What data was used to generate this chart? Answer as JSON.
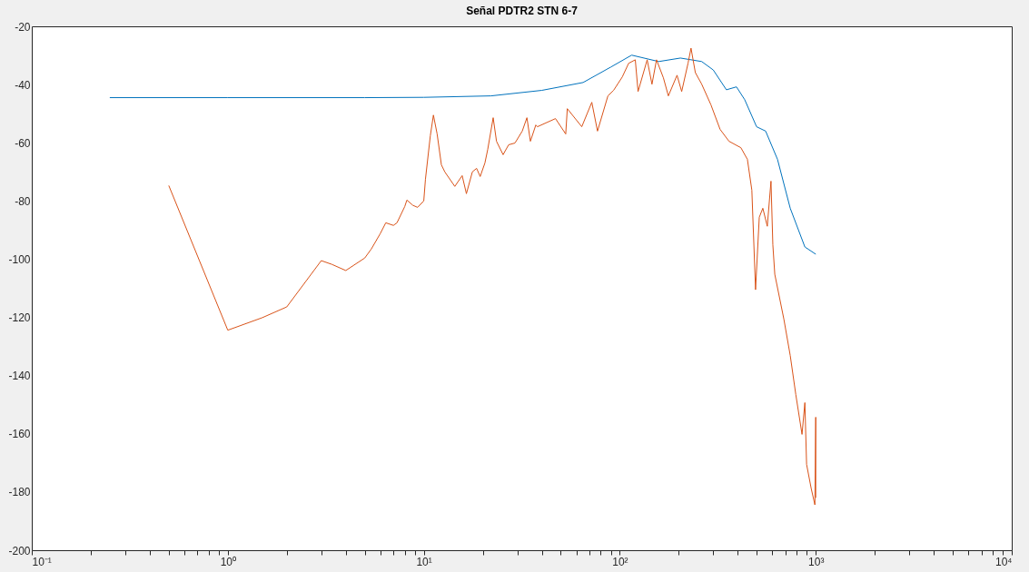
{
  "chart_data": {
    "type": "line",
    "title": "Señal PDTR2 STN 6-7",
    "log": "x",
    "grid": false,
    "line_style": "solid",
    "marker": "none",
    "xlim": [
      0.1,
      10000
    ],
    "ylim": [
      -200,
      -20
    ],
    "xticks": [
      {
        "value": 0.1,
        "label": "10⁻¹"
      },
      {
        "value": 0.2,
        "label": null
      },
      {
        "value": 0.3,
        "label": null
      },
      {
        "value": 0.4,
        "label": null
      },
      {
        "value": 0.5,
        "label": null
      },
      {
        "value": 0.6,
        "label": null
      },
      {
        "value": 0.7,
        "label": null
      },
      {
        "value": 0.8,
        "label": null
      },
      {
        "value": 0.9,
        "label": null
      },
      {
        "value": 1,
        "label": "10⁰"
      },
      {
        "value": 2,
        "label": null
      },
      {
        "value": 3,
        "label": null
      },
      {
        "value": 4,
        "label": null
      },
      {
        "value": 5,
        "label": null
      },
      {
        "value": 6,
        "label": null
      },
      {
        "value": 7,
        "label": null
      },
      {
        "value": 8,
        "label": null
      },
      {
        "value": 9,
        "label": null
      },
      {
        "value": 10,
        "label": "10¹"
      },
      {
        "value": 20,
        "label": null
      },
      {
        "value": 30,
        "label": null
      },
      {
        "value": 40,
        "label": null
      },
      {
        "value": 50,
        "label": null
      },
      {
        "value": 60,
        "label": null
      },
      {
        "value": 70,
        "label": null
      },
      {
        "value": 80,
        "label": null
      },
      {
        "value": 90,
        "label": null
      },
      {
        "value": 100,
        "label": "10²"
      },
      {
        "value": 200,
        "label": null
      },
      {
        "value": 300,
        "label": null
      },
      {
        "value": 400,
        "label": null
      },
      {
        "value": 500,
        "label": null
      },
      {
        "value": 600,
        "label": null
      },
      {
        "value": 700,
        "label": null
      },
      {
        "value": 800,
        "label": null
      },
      {
        "value": 900,
        "label": null
      },
      {
        "value": 1000,
        "label": "10³"
      },
      {
        "value": 2000,
        "label": null
      },
      {
        "value": 3000,
        "label": null
      },
      {
        "value": 4000,
        "label": null
      },
      {
        "value": 5000,
        "label": null
      },
      {
        "value": 6000,
        "label": null
      },
      {
        "value": 7000,
        "label": null
      },
      {
        "value": 8000,
        "label": null
      },
      {
        "value": 9000,
        "label": null
      },
      {
        "value": 10000,
        "label": "10⁴"
      }
    ],
    "yticks": [
      -200,
      -180,
      -160,
      -140,
      -120,
      -100,
      -80,
      -60,
      -40,
      -20
    ],
    "series": [
      {
        "color": "#0072bd",
        "x": [
          0.25,
          1,
          5,
          10,
          22,
          40,
          65,
          90,
          115,
          158,
          204,
          262,
          300,
          350,
          394,
          434,
          499,
          555,
          638,
          741,
          880,
          1000
        ],
        "values": [
          -44.5,
          -44.5,
          -44.5,
          -44.4,
          -43.9,
          -42,
          -39.3,
          -34,
          -29.9,
          -32.1,
          -30.9,
          -32.1,
          -35,
          -41.8,
          -40.8,
          -45.2,
          -54.5,
          -56,
          -65.7,
          -82.5,
          -95.8,
          -98.3
        ]
      },
      {
        "color": "#d95319",
        "x": [
          0.5,
          1,
          1.5,
          2,
          3,
          3.4,
          4,
          5,
          5.4,
          6,
          6.4,
          7,
          7.3,
          8,
          8.2,
          8.8,
          9.3,
          10,
          10.2,
          10.8,
          11.2,
          11.7,
          12.3,
          12.8,
          14.4,
          15.7,
          16.5,
          17.7,
          18.6,
          19.4,
          20.5,
          21.2,
          22.6,
          23.5,
          25.4,
          27.1,
          29.2,
          31.8,
          33.6,
          35,
          37.3,
          38,
          47,
          53,
          54,
          64,
          72,
          77,
          87,
          93,
          103,
          111,
          120,
          124,
          138,
          146,
          154,
          167,
          177,
          196,
          207,
          223,
          231,
          243,
          262,
          292,
          325,
          361,
          415,
          448,
          472,
          493,
          515,
          537,
          566,
          591,
          604,
          618,
          688,
          741,
          791,
          851,
          880,
          898,
          948,
          990,
          1000,
          1000
        ],
        "values": [
          -74.7,
          -124.4,
          -120.1,
          -116.4,
          -100.5,
          -101.8,
          -103.9,
          -99.6,
          -96.5,
          -91.2,
          -87.5,
          -88.4,
          -87.5,
          -81.9,
          -79.7,
          -81.5,
          -82.2,
          -80,
          -72.5,
          -57.6,
          -50.5,
          -57,
          -67.6,
          -70,
          -75,
          -71.3,
          -77.5,
          -70,
          -68.8,
          -71.6,
          -67,
          -62.3,
          -51.4,
          -59.5,
          -64.1,
          -60.7,
          -60.1,
          -56,
          -51.4,
          -59.5,
          -53.9,
          -54.5,
          -51.7,
          -57,
          -48.3,
          -54.5,
          -46.1,
          -56,
          -43.9,
          -42,
          -37.4,
          -32.7,
          -31.5,
          -42.4,
          -31.5,
          -39.9,
          -31.5,
          -37.7,
          -43.9,
          -36.8,
          -42.4,
          -32.7,
          -27.5,
          -35.9,
          -39.9,
          -47,
          -55.4,
          -59.5,
          -61.7,
          -65.7,
          -76.3,
          -110.5,
          -85.6,
          -82.5,
          -88.7,
          -73.2,
          -95,
          -105.2,
          -120.7,
          -133.1,
          -146.5,
          -160.2,
          -149.3,
          -170.5,
          -178.8,
          -184.4,
          -154.3,
          -182
        ]
      }
    ]
  }
}
